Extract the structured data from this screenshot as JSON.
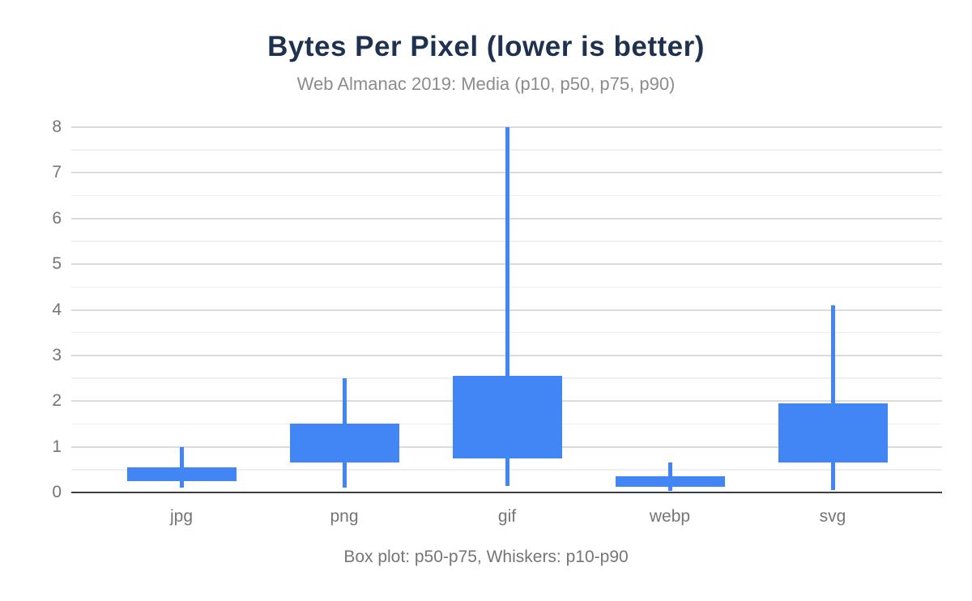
{
  "chart_data": {
    "type": "boxplot",
    "title": "Bytes Per Pixel (lower is better)",
    "subtitle": "Web Almanac 2019: Media (p10, p50, p75, p90)",
    "caption": "Box plot: p50-p75, Whiskers: p10-p90",
    "categories": [
      "jpg",
      "png",
      "gif",
      "webp",
      "svg"
    ],
    "series": [
      {
        "name": "jpg",
        "p10": 0.1,
        "p50": 0.25,
        "p75": 0.55,
        "p90": 1.0
      },
      {
        "name": "png",
        "p10": 0.1,
        "p50": 0.65,
        "p75": 1.5,
        "p90": 2.5
      },
      {
        "name": "gif",
        "p10": 0.15,
        "p50": 0.75,
        "p75": 2.55,
        "p90": 8.0
      },
      {
        "name": "webp",
        "p10": 0.04,
        "p50": 0.12,
        "p75": 0.35,
        "p90": 0.65
      },
      {
        "name": "svg",
        "p10": 0.05,
        "p50": 0.65,
        "p75": 1.95,
        "p90": 4.1
      }
    ],
    "xlabel": "",
    "ylabel": "",
    "ylim": [
      0,
      8
    ],
    "yticks": [
      0,
      1,
      2,
      3,
      4,
      5,
      6,
      7,
      8
    ],
    "minor_gridline_step": 0.5,
    "grid": "on",
    "legend": "none",
    "box_represents": "p50-p75",
    "whiskers_represent": "p10-p90"
  },
  "colors": {
    "box": "#4285F4",
    "title": "#1E3250",
    "subtitle": "#8C8C8C",
    "axis_label": "#757575",
    "grid_major": "#DBDBDB",
    "grid_minor": "#EFEFEF",
    "baseline": "#3B4043",
    "background": "#FFFFFF"
  }
}
